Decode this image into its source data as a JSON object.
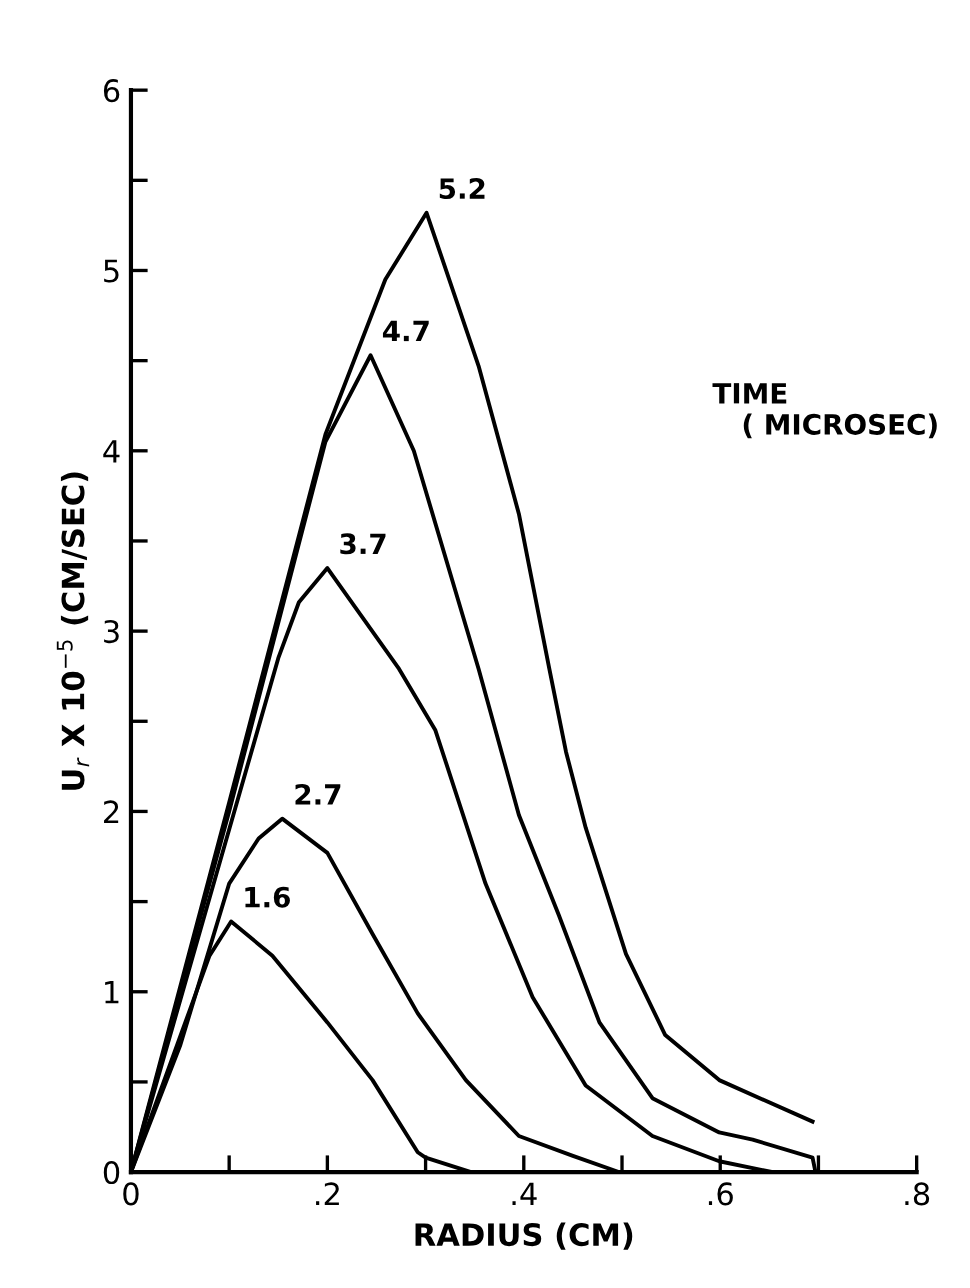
{
  "chart_data": {
    "type": "line",
    "xlabel": "RADIUS (CM)",
    "ylabel": "U$_{r}$ X 10$^{−5}$ (CM/SEC)",
    "legend_title": "TIME\n   ( MICROSEC)",
    "xlim": [
      0,
      0.8
    ],
    "ylim": [
      0,
      6
    ],
    "xticks": [
      0,
      {
        "value": 0.1,
        "label": null
      },
      {
        "value": 0.2,
        "label": ".2"
      },
      {
        "value": 0.3,
        "label": null
      },
      {
        "value": 0.4,
        "label": ".4"
      },
      {
        "value": 0.5,
        "label": null
      },
      {
        "value": 0.6,
        "label": ".6"
      },
      {
        "value": 0.7,
        "label": null
      },
      {
        "value": 0.8,
        "label": ".8"
      }
    ],
    "yticks": [
      0,
      {
        "value": 0.5,
        "label": null
      },
      1,
      {
        "value": 1.5,
        "label": null
      },
      2,
      {
        "value": 2.5,
        "label": null
      },
      3,
      {
        "value": 3.5,
        "label": null
      },
      4,
      {
        "value": 4.5,
        "label": null
      },
      5,
      {
        "value": 5.5,
        "label": null
      },
      6
    ],
    "grid": false,
    "legend": false,
    "marker": "none",
    "line_style": "solid",
    "series": [
      {
        "name": "1.6",
        "color": "#000000",
        "x": [
          0,
          0.03,
          0.06,
          0.08,
          0.102,
          0.144,
          0.2,
          0.246,
          0.292,
          0.3,
          0.346
        ],
        "values": [
          0,
          0.45,
          0.9,
          1.2,
          1.39,
          1.2,
          0.83,
          0.51,
          0.11,
          0.08,
          0
        ]
      },
      {
        "name": "2.7",
        "color": "#000000",
        "x": [
          0,
          0.05,
          0.1,
          0.13,
          0.154,
          0.2,
          0.246,
          0.292,
          0.341,
          0.395,
          0.45,
          0.497
        ],
        "values": [
          0,
          0.7,
          1.6,
          1.85,
          1.96,
          1.77,
          1.32,
          0.88,
          0.51,
          0.2,
          0.09,
          0
        ]
      },
      {
        "name": "3.7",
        "color": "#000000",
        "x": [
          0,
          0.1,
          0.15,
          0.171,
          0.2,
          0.273,
          0.31,
          0.361,
          0.409,
          0.463,
          0.531,
          0.599,
          0.653
        ],
        "values": [
          0,
          1.9,
          2.85,
          3.16,
          3.35,
          2.79,
          2.45,
          1.6,
          0.97,
          0.48,
          0.2,
          0.06,
          0
        ]
      },
      {
        "name": "4.7",
        "color": "#000000",
        "x": [
          0,
          0.1,
          0.198,
          0.244,
          0.288,
          0.354,
          0.395,
          0.436,
          0.477,
          0.531,
          0.599,
          0.633,
          0.694,
          0.697
        ],
        "values": [
          0,
          2.0,
          4.05,
          4.53,
          4.0,
          2.79,
          1.98,
          1.42,
          0.83,
          0.41,
          0.22,
          0.18,
          0.08,
          0
        ]
      },
      {
        "name": "5.2",
        "color": "#000000",
        "x": [
          0,
          0.1,
          0.198,
          0.259,
          0.301,
          0.354,
          0.395,
          0.426,
          0.443,
          0.463,
          0.504,
          0.544,
          0.599,
          0.694
        ],
        "values": [
          0,
          2.05,
          4.09,
          4.95,
          5.32,
          4.47,
          3.65,
          2.79,
          2.33,
          1.91,
          1.21,
          0.76,
          0.51,
          0.28
        ]
      }
    ]
  }
}
